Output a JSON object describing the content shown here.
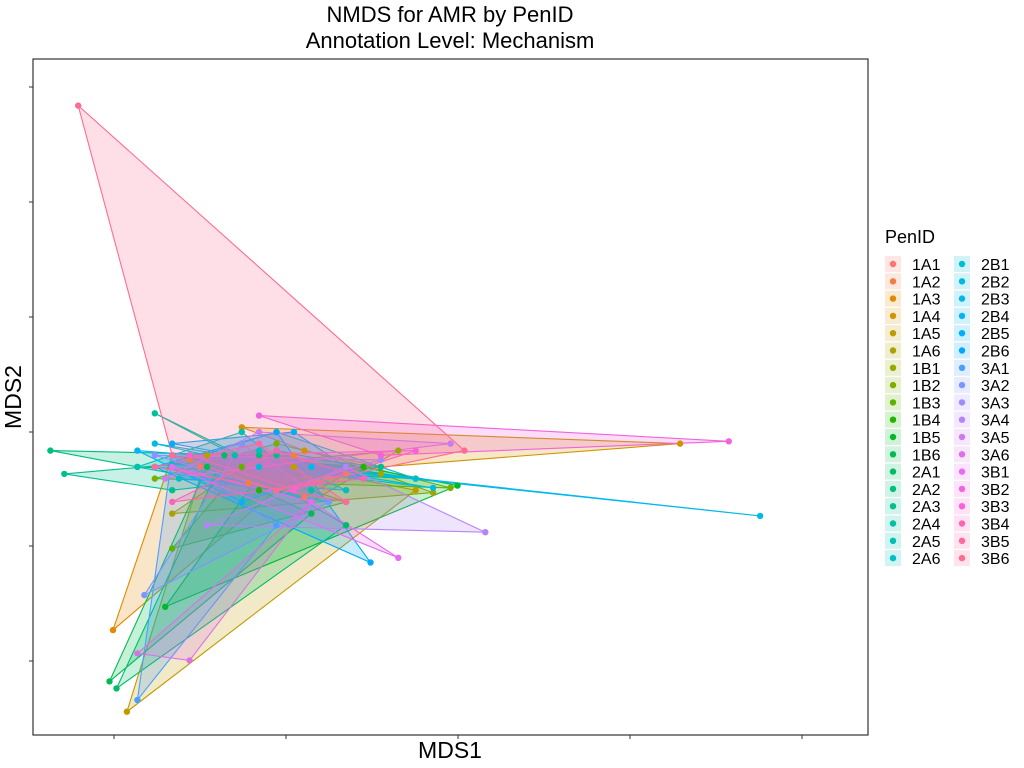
{
  "chart_data": {
    "type": "scatter",
    "title": "NMDS for AMR by PenID",
    "subtitle": "Annotation Level: Mechanism",
    "xlabel": "MDS1",
    "ylabel": "MDS2",
    "x_ticks_labeled": false,
    "y_ticks_labeled": false,
    "xlim": [
      -0.6,
      1.8
    ],
    "ylim": [
      -1.1,
      1.8
    ],
    "grid": false,
    "hulls": true,
    "legend": {
      "title": "PenID",
      "placement": "right",
      "columns": 2
    },
    "series": [
      {
        "name": "1A1",
        "color": "#F8766D",
        "x": [
          -0.12,
          0.05,
          0.18,
          0.3
        ],
        "y": [
          0.05,
          0.12,
          -0.08,
          0.02
        ]
      },
      {
        "name": "1A2",
        "color": "#EF7F46",
        "x": [
          -0.15,
          0.02,
          0.15
        ],
        "y": [
          0.08,
          -0.02,
          0.1
        ]
      },
      {
        "name": "1A3",
        "color": "#E38900",
        "x": [
          -0.37,
          -0.2,
          0.0,
          0.1
        ],
        "y": [
          -0.65,
          0.1,
          0.05,
          -0.05
        ]
      },
      {
        "name": "1A4",
        "color": "#D39200",
        "x": [
          0.0,
          0.18,
          1.26,
          0.4
        ],
        "y": [
          0.22,
          0.12,
          0.15,
          0.05
        ]
      },
      {
        "name": "1A5",
        "color": "#C09B00",
        "x": [
          -0.33,
          -0.1,
          0.15,
          0.5
        ],
        "y": [
          -1.0,
          0.1,
          0.05,
          -0.05
        ]
      },
      {
        "name": "1A6",
        "color": "#AAA200",
        "x": [
          -0.2,
          0.05,
          0.4,
          0.55
        ],
        "y": [
          -0.15,
          0.1,
          0.02,
          -0.06
        ]
      },
      {
        "name": "1B1",
        "color": "#93AA00",
        "x": [
          -0.1,
          0.2,
          0.45
        ],
        "y": [
          0.05,
          -0.1,
          0.12
        ]
      },
      {
        "name": "1B2",
        "color": "#7AAF00",
        "x": [
          -0.25,
          0.1,
          0.6
        ],
        "y": [
          0.0,
          0.15,
          -0.04
        ]
      },
      {
        "name": "1B3",
        "color": "#5BB300",
        "x": [
          -0.2,
          0.0,
          0.3
        ],
        "y": [
          -0.3,
          0.05,
          -0.1
        ]
      },
      {
        "name": "1B4",
        "color": "#20B600",
        "x": [
          -0.15,
          0.05,
          0.35
        ],
        "y": [
          0.1,
          -0.05,
          0.05
        ]
      },
      {
        "name": "1B5",
        "color": "#00B92A",
        "x": [
          -0.22,
          0.1,
          0.62
        ],
        "y": [
          -0.55,
          0.12,
          -0.03
        ]
      },
      {
        "name": "1B6",
        "color": "#00BB50",
        "x": [
          -0.38,
          -0.1,
          0.2
        ],
        "y": [
          -0.87,
          0.05,
          -0.15
        ]
      },
      {
        "name": "2A1",
        "color": "#00BC67",
        "x": [
          -0.36,
          -0.05,
          0.3
        ],
        "y": [
          -0.9,
          0.1,
          -0.2
        ]
      },
      {
        "name": "2A2",
        "color": "#00BE7C",
        "x": [
          -0.55,
          -0.3,
          0.05,
          0.5
        ],
        "y": [
          0.12,
          0.05,
          0.1,
          0.0
        ]
      },
      {
        "name": "2A3",
        "color": "#00BF8F",
        "x": [
          -0.51,
          -0.2,
          0.1,
          0.4
        ],
        "y": [
          0.02,
          -0.05,
          0.1,
          0.05
        ]
      },
      {
        "name": "2A4",
        "color": "#00C0A0",
        "x": [
          -0.25,
          -0.02,
          0.2
        ],
        "y": [
          0.28,
          0.1,
          -0.05
        ]
      },
      {
        "name": "2A5",
        "color": "#00C0B1",
        "x": [
          -0.3,
          0.0,
          0.25
        ],
        "y": [
          0.05,
          0.2,
          -0.1
        ]
      },
      {
        "name": "2A6",
        "color": "#00BFC1",
        "x": [
          -0.18,
          0.05,
          0.3
        ],
        "y": [
          0.0,
          0.12,
          -0.05
        ]
      },
      {
        "name": "2B1",
        "color": "#00BDD0",
        "x": [
          -0.2,
          0.1,
          0.5
        ],
        "y": [
          0.06,
          0.2,
          0.0
        ]
      },
      {
        "name": "2B2",
        "color": "#00BBDD",
        "x": [
          -0.25,
          0.05,
          0.55
        ],
        "y": [
          0.15,
          0.05,
          -0.04
        ]
      },
      {
        "name": "2B3",
        "color": "#00B8EA",
        "x": [
          -0.15,
          0.2,
          1.49
        ],
        "y": [
          0.1,
          0.05,
          -0.16
        ]
      },
      {
        "name": "2B4",
        "color": "#00B4F5",
        "x": [
          -0.3,
          0.0,
          0.3
        ],
        "y": [
          0.12,
          -0.1,
          0.05
        ]
      },
      {
        "name": "2B5",
        "color": "#00AEFA",
        "x": [
          -0.2,
          0.15,
          0.35
        ],
        "y": [
          0.15,
          0.2,
          0.0
        ]
      },
      {
        "name": "2B6",
        "color": "#00A8FF",
        "x": [
          -0.25,
          0.1,
          0.37
        ],
        "y": [
          0.05,
          0.2,
          -0.36
        ]
      },
      {
        "name": "3A1",
        "color": "#4A9FFF",
        "x": [
          -0.3,
          -0.2,
          0.1
        ],
        "y": [
          -0.95,
          0.1,
          -0.2
        ]
      },
      {
        "name": "3A2",
        "color": "#7D96FF",
        "x": [
          -0.28,
          0.0,
          0.25
        ],
        "y": [
          -0.5,
          0.15,
          -0.1
        ]
      },
      {
        "name": "3A3",
        "color": "#9E8CFF",
        "x": [
          -0.25,
          0.1,
          0.4
        ],
        "y": [
          0.1,
          -0.05,
          0.08
        ]
      },
      {
        "name": "3A4",
        "color": "#B784F8",
        "x": [
          -0.1,
          0.3,
          0.7
        ],
        "y": [
          -0.2,
          0.05,
          -0.23
        ]
      },
      {
        "name": "3A5",
        "color": "#CA7BF1",
        "x": [
          -0.22,
          0.05,
          0.6
        ],
        "y": [
          0.0,
          0.2,
          0.15
        ]
      },
      {
        "name": "3A6",
        "color": "#DA72E6",
        "x": [
          -0.3,
          -0.15,
          0.2
        ],
        "y": [
          -0.75,
          -0.78,
          -0.1
        ]
      },
      {
        "name": "3B1",
        "color": "#E76BF3",
        "x": [
          -0.2,
          0.2,
          0.45
        ],
        "y": [
          0.05,
          -0.1,
          -0.34
        ]
      },
      {
        "name": "3B2",
        "color": "#F064DC",
        "x": [
          0.05,
          0.4,
          1.4
        ],
        "y": [
          0.27,
          0.1,
          0.16
        ]
      },
      {
        "name": "3B3",
        "color": "#FB61D7",
        "x": [
          -0.15,
          0.15,
          0.5
        ],
        "y": [
          0.1,
          -0.05,
          0.12
        ]
      },
      {
        "name": "3B4",
        "color": "#FF63B6",
        "x": [
          -0.2,
          0.1,
          0.35
        ],
        "y": [
          -0.1,
          0.12,
          0.0
        ]
      },
      {
        "name": "3B5",
        "color": "#FF68A1",
        "x": [
          -0.25,
          0.05,
          0.3
        ],
        "y": [
          0.05,
          0.15,
          -0.1
        ]
      },
      {
        "name": "3B6",
        "color": "#FF6C91",
        "x": [
          -0.47,
          -0.2,
          0.1,
          0.64
        ],
        "y": [
          1.6,
          0.1,
          -0.05,
          0.12
        ]
      }
    ]
  }
}
